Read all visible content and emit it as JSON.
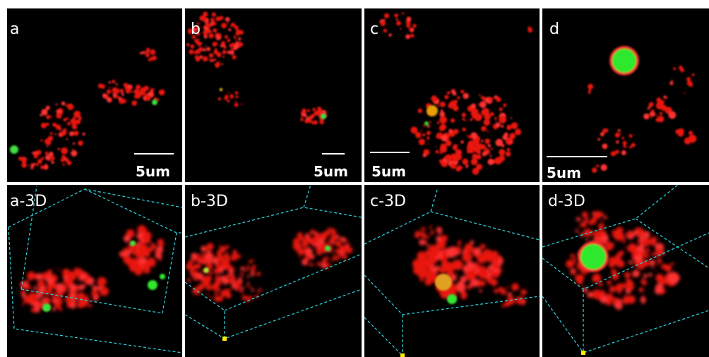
{
  "panels": [
    {
      "label": "a",
      "scale_label": "5um"
    },
    {
      "label": "b",
      "scale_label": "5um"
    },
    {
      "label": "c",
      "scale_label": "5um"
    },
    {
      "label": "d",
      "scale_label": "5um"
    },
    {
      "label": "a-3D"
    },
    {
      "label": "b-3D"
    },
    {
      "label": "c-3D"
    },
    {
      "label": "d-3D"
    }
  ]
}
